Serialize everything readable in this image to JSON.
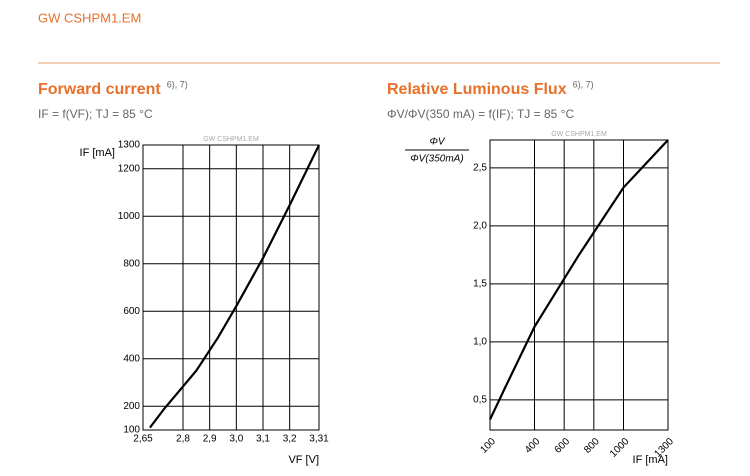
{
  "header": "GW CSHPM1.EM",
  "chart_data": [
    {
      "type": "line",
      "title": "Forward current",
      "title_note": "6), 7)",
      "subtitle": "IF = f(VF); TJ = 85 °C",
      "watermark": "GW CSHPM1.EM",
      "x_label": "VF [V]",
      "y_label": [
        "IF [mA]"
      ],
      "color": "#000000",
      "x": [
        2.676,
        2.73,
        2.85,
        2.93,
        3.0,
        3.1,
        3.2,
        3.31
      ],
      "values": [
        110,
        190,
        350,
        487,
        622,
        824,
        1047,
        1300
      ],
      "xlim": [
        2.65,
        3.31
      ],
      "xticks": [
        {
          "value": 2.65,
          "label": "2,65"
        },
        {
          "value": 2.8,
          "label": "2,8"
        },
        {
          "value": 2.9,
          "label": "2,9"
        },
        {
          "value": 3.0,
          "label": "3,0"
        },
        {
          "value": 3.1,
          "label": "3,1"
        },
        {
          "value": 3.2,
          "label": "3,2"
        },
        {
          "value": 3.31,
          "label": "3,31"
        }
      ],
      "ylim": [
        100,
        1300
      ],
      "yticks": [
        100,
        200,
        400,
        600,
        800,
        1000,
        1200,
        1300
      ],
      "grid": true
    },
    {
      "type": "line",
      "title": "Relative Luminous Flux",
      "title_note": "6), 7)",
      "subtitle": "ΦV/ΦV(350 mA) = f(IF); TJ = 85 °C",
      "watermark": "GW CSHPM1.EM",
      "x_label": "IF [mA]",
      "y_label": [
        "ΦV",
        "ΦV(350mA)"
      ],
      "color": "#000000",
      "x": [
        100,
        200,
        400,
        700,
        1000,
        1300
      ],
      "values": [
        0.33,
        0.6,
        1.13,
        1.75,
        2.33,
        2.74
      ],
      "xlim": [
        100,
        1300
      ],
      "xticks": [
        100,
        400,
        600,
        800,
        1000,
        1300
      ],
      "ylim": [
        0.24,
        2.74
      ],
      "yticks": [
        {
          "value": 0.5,
          "label": "0,5"
        },
        {
          "value": 1.0,
          "label": "1,0"
        },
        {
          "value": 1.5,
          "label": "1,5"
        },
        {
          "value": 2.0,
          "label": "2,0"
        },
        {
          "value": 2.5,
          "label": "2,5"
        }
      ],
      "grid": true
    }
  ]
}
